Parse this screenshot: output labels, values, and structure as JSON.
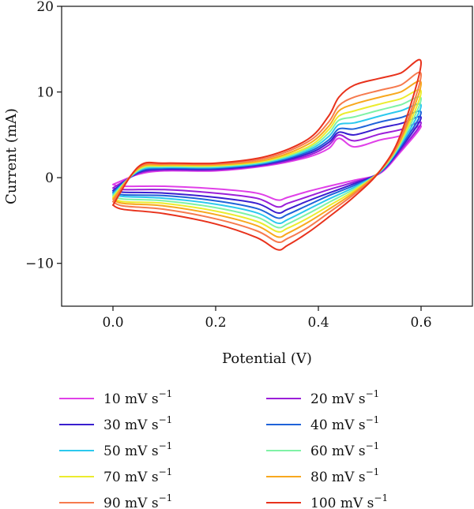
{
  "chart_data": {
    "type": "line",
    "title": "",
    "xlabel": "Potential (V)",
    "ylabel": "Current (mA)",
    "xlim": [
      -0.1,
      0.7
    ],
    "ylim": [
      -15,
      20
    ],
    "xticks": [
      0.0,
      0.2,
      0.4,
      0.6
    ],
    "xtick_labels": [
      "0.0",
      "0.2",
      "0.4",
      "0.6"
    ],
    "yticks": [
      -10,
      0,
      10,
      20
    ],
    "ytick_labels": [
      "−10",
      "0",
      "10",
      "20"
    ],
    "grid": false,
    "legend_position": "bottom",
    "legend_unit": "mV s",
    "legend_exponent": "−1",
    "series": [
      {
        "scan_rate": "10",
        "color": "#e040e8",
        "anodic_x": [
          0.0,
          0.05,
          0.1,
          0.2,
          0.3,
          0.38,
          0.42,
          0.44,
          0.47,
          0.52,
          0.56,
          0.6
        ],
        "anodic_y": [
          -0.8,
          0.4,
          0.8,
          0.8,
          1.4,
          2.4,
          3.4,
          4.6,
          3.6,
          4.4,
          4.9,
          6.0
        ],
        "cathodic_x": [
          0.6,
          0.56,
          0.52,
          0.47,
          0.42,
          0.38,
          0.34,
          0.32,
          0.28,
          0.2,
          0.1,
          0.02,
          0.0
        ],
        "cathodic_y": [
          6.0,
          3.0,
          0.5,
          -0.3,
          -1.0,
          -1.6,
          -2.3,
          -2.6,
          -1.8,
          -1.3,
          -1.0,
          -1.0,
          -0.8
        ]
      },
      {
        "scan_rate": "20",
        "color": "#9b1fd9",
        "anodic_x": [
          0.0,
          0.05,
          0.1,
          0.2,
          0.3,
          0.38,
          0.42,
          0.44,
          0.47,
          0.52,
          0.56,
          0.6
        ],
        "anodic_y": [
          -1.2,
          0.5,
          0.9,
          0.9,
          1.5,
          2.6,
          3.8,
          5.0,
          4.3,
          5.1,
          5.6,
          6.4
        ],
        "cathodic_x": [
          0.6,
          0.56,
          0.52,
          0.47,
          0.42,
          0.38,
          0.34,
          0.32,
          0.28,
          0.2,
          0.1,
          0.02,
          0.0
        ],
        "cathodic_y": [
          6.4,
          3.2,
          0.6,
          -0.5,
          -1.4,
          -2.2,
          -3.0,
          -3.4,
          -2.4,
          -1.8,
          -1.4,
          -1.4,
          -1.2
        ]
      },
      {
        "scan_rate": "30",
        "color": "#3a1fcf",
        "anodic_x": [
          0.0,
          0.05,
          0.1,
          0.2,
          0.3,
          0.38,
          0.42,
          0.44,
          0.47,
          0.52,
          0.56,
          0.6
        ],
        "anodic_y": [
          -1.5,
          0.6,
          1.0,
          1.0,
          1.6,
          2.8,
          4.1,
          5.3,
          5.0,
          5.8,
          6.3,
          7.0
        ],
        "cathodic_x": [
          0.6,
          0.56,
          0.52,
          0.47,
          0.42,
          0.38,
          0.34,
          0.32,
          0.28,
          0.2,
          0.1,
          0.02,
          0.0
        ],
        "cathodic_y": [
          7.0,
          3.4,
          0.6,
          -0.7,
          -1.8,
          -2.7,
          -3.7,
          -4.1,
          -3.0,
          -2.3,
          -1.8,
          -1.7,
          -1.5
        ]
      },
      {
        "scan_rate": "40",
        "color": "#1f63d9",
        "anodic_x": [
          0.0,
          0.05,
          0.1,
          0.2,
          0.3,
          0.38,
          0.42,
          0.44,
          0.47,
          0.52,
          0.56,
          0.6
        ],
        "anodic_y": [
          -1.7,
          0.7,
          1.1,
          1.1,
          1.7,
          3.0,
          4.4,
          5.7,
          5.7,
          6.5,
          7.0,
          7.6
        ],
        "cathodic_x": [
          0.6,
          0.56,
          0.52,
          0.47,
          0.42,
          0.38,
          0.34,
          0.32,
          0.28,
          0.2,
          0.1,
          0.02,
          0.0
        ],
        "cathodic_y": [
          7.6,
          3.6,
          0.6,
          -0.9,
          -2.1,
          -3.2,
          -4.3,
          -4.7,
          -3.6,
          -2.7,
          -2.1,
          -2.0,
          -1.7
        ]
      },
      {
        "scan_rate": "50",
        "color": "#2cc9ee",
        "anodic_x": [
          0.0,
          0.05,
          0.1,
          0.2,
          0.3,
          0.38,
          0.42,
          0.44,
          0.47,
          0.52,
          0.56,
          0.6
        ],
        "anodic_y": [
          -1.9,
          0.8,
          1.2,
          1.2,
          1.8,
          3.2,
          4.8,
          6.2,
          6.4,
          7.2,
          7.8,
          8.4
        ],
        "cathodic_x": [
          0.6,
          0.56,
          0.52,
          0.47,
          0.42,
          0.38,
          0.34,
          0.32,
          0.28,
          0.2,
          0.1,
          0.02,
          0.0
        ],
        "cathodic_y": [
          8.4,
          3.8,
          0.7,
          -1.1,
          -2.5,
          -3.7,
          -4.9,
          -5.3,
          -4.1,
          -3.1,
          -2.4,
          -2.2,
          -1.9
        ]
      },
      {
        "scan_rate": "60",
        "color": "#7ff2a6",
        "anodic_x": [
          0.0,
          0.05,
          0.1,
          0.2,
          0.3,
          0.38,
          0.42,
          0.44,
          0.47,
          0.52,
          0.56,
          0.6
        ],
        "anodic_y": [
          -2.1,
          0.9,
          1.3,
          1.3,
          1.9,
          3.4,
          5.2,
          6.7,
          7.1,
          7.9,
          8.5,
          9.2
        ],
        "cathodic_x": [
          0.6,
          0.56,
          0.52,
          0.47,
          0.42,
          0.38,
          0.34,
          0.32,
          0.28,
          0.2,
          0.1,
          0.02,
          0.0
        ],
        "cathodic_y": [
          9.2,
          4.0,
          0.7,
          -1.3,
          -2.9,
          -4.2,
          -5.4,
          -5.8,
          -4.6,
          -3.5,
          -2.7,
          -2.5,
          -2.1
        ]
      },
      {
        "scan_rate": "70",
        "color": "#ecec2e",
        "anodic_x": [
          0.0,
          0.05,
          0.1,
          0.2,
          0.3,
          0.38,
          0.42,
          0.44,
          0.47,
          0.52,
          0.56,
          0.6
        ],
        "anodic_y": [
          -2.3,
          1.0,
          1.4,
          1.4,
          2.0,
          3.6,
          5.6,
          7.2,
          7.8,
          8.6,
          9.2,
          10.0
        ],
        "cathodic_x": [
          0.6,
          0.56,
          0.52,
          0.47,
          0.42,
          0.38,
          0.34,
          0.32,
          0.28,
          0.2,
          0.1,
          0.02,
          0.0
        ],
        "cathodic_y": [
          10.0,
          4.2,
          0.8,
          -1.5,
          -3.3,
          -4.7,
          -5.9,
          -6.3,
          -5.1,
          -3.9,
          -3.0,
          -2.8,
          -2.3
        ]
      },
      {
        "scan_rate": "80",
        "color": "#f8a81e",
        "anodic_x": [
          0.0,
          0.05,
          0.1,
          0.2,
          0.3,
          0.38,
          0.42,
          0.44,
          0.47,
          0.52,
          0.56,
          0.6
        ],
        "anodic_y": [
          -2.5,
          1.1,
          1.5,
          1.5,
          2.1,
          3.9,
          6.0,
          7.8,
          8.6,
          9.4,
          10.0,
          11.0
        ],
        "cathodic_x": [
          0.6,
          0.56,
          0.52,
          0.47,
          0.42,
          0.38,
          0.34,
          0.32,
          0.28,
          0.2,
          0.1,
          0.02,
          0.0
        ],
        "cathodic_y": [
          11.0,
          4.4,
          0.8,
          -1.7,
          -3.7,
          -5.2,
          -6.5,
          -6.9,
          -5.6,
          -4.3,
          -3.3,
          -3.0,
          -2.5
        ]
      },
      {
        "scan_rate": "90",
        "color": "#f67a4e",
        "anodic_x": [
          0.0,
          0.05,
          0.1,
          0.2,
          0.3,
          0.38,
          0.42,
          0.44,
          0.47,
          0.52,
          0.56,
          0.6
        ],
        "anodic_y": [
          -2.8,
          1.2,
          1.6,
          1.6,
          2.3,
          4.2,
          6.5,
          8.4,
          9.4,
          10.2,
          10.8,
          12.0
        ],
        "cathodic_x": [
          0.6,
          0.56,
          0.52,
          0.47,
          0.42,
          0.38,
          0.34,
          0.32,
          0.28,
          0.2,
          0.1,
          0.02,
          0.0
        ],
        "cathodic_y": [
          12.0,
          4.6,
          0.8,
          -1.9,
          -4.1,
          -5.8,
          -7.1,
          -7.5,
          -6.2,
          -4.8,
          -3.7,
          -3.3,
          -2.8
        ]
      },
      {
        "scan_rate": "100",
        "color": "#e8321c",
        "anodic_x": [
          0.0,
          0.05,
          0.1,
          0.2,
          0.3,
          0.38,
          0.42,
          0.44,
          0.47,
          0.52,
          0.56,
          0.6
        ],
        "anodic_y": [
          -3.2,
          1.3,
          1.7,
          1.7,
          2.5,
          4.5,
          7.2,
          9.4,
          10.8,
          11.6,
          12.2,
          13.4
        ],
        "cathodic_x": [
          0.6,
          0.56,
          0.52,
          0.47,
          0.42,
          0.38,
          0.34,
          0.32,
          0.28,
          0.2,
          0.1,
          0.02,
          0.0
        ],
        "cathodic_y": [
          13.4,
          5.0,
          0.8,
          -2.2,
          -4.6,
          -6.4,
          -7.9,
          -8.4,
          -7.0,
          -5.4,
          -4.2,
          -3.7,
          -3.2
        ]
      }
    ]
  }
}
